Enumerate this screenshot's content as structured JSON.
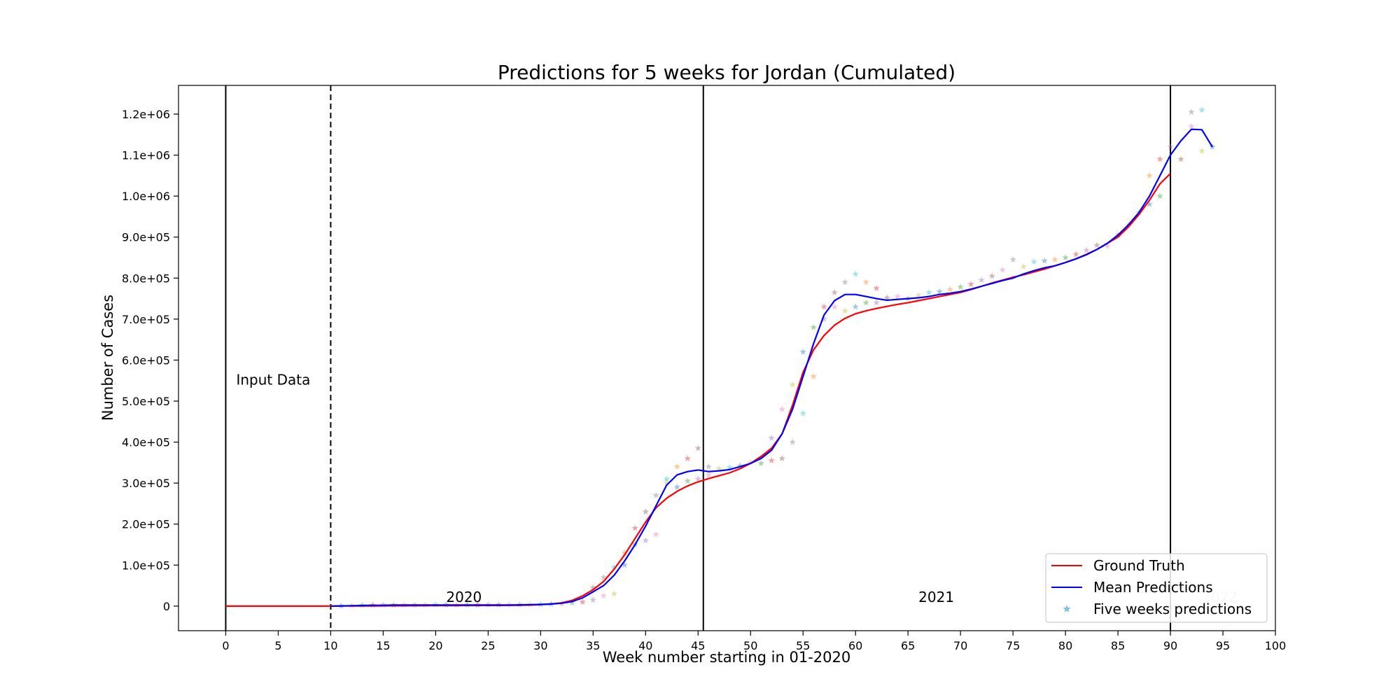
{
  "chart_data": {
    "type": "line",
    "title": "Predictions for 5 weeks for Jordan (Cumulated)",
    "xlabel": "Week number starting in 01-2020",
    "ylabel": "Number of Cases",
    "xlim": [
      -4.5,
      100
    ],
    "ylim": [
      -60000,
      1270000
    ],
    "x_ticks": [
      0,
      5,
      10,
      15,
      20,
      25,
      30,
      35,
      40,
      45,
      50,
      55,
      60,
      65,
      70,
      75,
      80,
      85,
      90,
      95,
      100
    ],
    "y_ticks": [
      0,
      100000,
      200000,
      300000,
      400000,
      500000,
      600000,
      700000,
      800000,
      900000,
      1000000,
      1100000,
      1200000
    ],
    "y_tick_labels": [
      "0",
      "1.0e+05",
      "2.0e+05",
      "3.0e+05",
      "4.0e+05",
      "5.0e+05",
      "6.0e+05",
      "7.0e+05",
      "8.0e+05",
      "9.0e+05",
      "1.0e+06",
      "1.1e+06",
      "1.2e+06"
    ],
    "grid": false,
    "legend": {
      "position": "bottom-right",
      "entries": [
        "Ground Truth",
        "Mean Predictions",
        "Five weeks predictions"
      ]
    },
    "vertical_lines": [
      {
        "x": 0,
        "style": "solid"
      },
      {
        "x": 10,
        "style": "dashed"
      },
      {
        "x": 45.5,
        "style": "solid"
      },
      {
        "x": 90,
        "style": "solid"
      }
    ],
    "annotations": [
      {
        "text": "Input Data",
        "x": 1,
        "y": 540000,
        "faint": false
      },
      {
        "text": "2020",
        "x": 21,
        "y": 10000,
        "faint": false
      },
      {
        "text": "2021",
        "x": 66,
        "y": 10000,
        "faint": false
      },
      {
        "text": "2022",
        "x": 93,
        "y": 10000,
        "faint": true
      }
    ],
    "series": [
      {
        "name": "Ground Truth",
        "color": "#ff0000",
        "x": [
          0,
          1,
          2,
          3,
          4,
          5,
          6,
          7,
          8,
          9,
          10,
          11,
          12,
          13,
          14,
          15,
          16,
          17,
          18,
          19,
          20,
          21,
          22,
          23,
          24,
          25,
          26,
          27,
          28,
          29,
          30,
          31,
          32,
          33,
          34,
          35,
          36,
          37,
          38,
          39,
          40,
          41,
          42,
          43,
          44,
          45,
          46,
          47,
          48,
          49,
          50,
          51,
          52,
          53,
          54,
          55,
          56,
          57,
          58,
          59,
          60,
          61,
          62,
          63,
          64,
          65,
          66,
          67,
          68,
          69,
          70,
          71,
          72,
          73,
          74,
          75,
          76,
          77,
          78,
          79,
          80,
          81,
          82,
          83,
          84,
          85,
          86,
          87,
          88,
          89,
          90
        ],
        "values": [
          0,
          0,
          0,
          0,
          0,
          0,
          0,
          0,
          0,
          0,
          100,
          200,
          300,
          400,
          500,
          600,
          700,
          800,
          900,
          1000,
          1100,
          1200,
          1300,
          1400,
          1500,
          1600,
          1700,
          1800,
          2000,
          2500,
          3500,
          5000,
          8000,
          14000,
          25000,
          40000,
          60000,
          90000,
          125000,
          165000,
          205000,
          240000,
          263000,
          280000,
          293000,
          303000,
          311000,
          318000,
          325000,
          335000,
          348000,
          365000,
          385000,
          420000,
          490000,
          570000,
          625000,
          660000,
          685000,
          702000,
          713000,
          720000,
          726000,
          731000,
          736000,
          740000,
          745000,
          750000,
          755000,
          760000,
          765000,
          772000,
          780000,
          788000,
          795000,
          802000,
          808000,
          815000,
          822000,
          830000,
          838000,
          847000,
          858000,
          870000,
          885000,
          900000,
          925000,
          955000,
          990000,
          1030000,
          1055000
        ]
      },
      {
        "name": "Mean Predictions",
        "color": "#0000ff",
        "x": [
          10,
          11,
          12,
          13,
          14,
          15,
          16,
          17,
          18,
          19,
          20,
          21,
          22,
          23,
          24,
          25,
          26,
          27,
          28,
          29,
          30,
          31,
          32,
          33,
          34,
          35,
          36,
          37,
          38,
          39,
          40,
          41,
          42,
          43,
          44,
          45,
          46,
          47,
          48,
          49,
          50,
          51,
          52,
          53,
          54,
          55,
          56,
          57,
          58,
          59,
          60,
          61,
          62,
          63,
          64,
          65,
          66,
          67,
          68,
          69,
          70,
          71,
          72,
          73,
          74,
          75,
          76,
          77,
          78,
          79,
          80,
          81,
          82,
          83,
          84,
          85,
          86,
          87,
          88,
          89,
          90,
          91,
          92,
          93,
          94
        ],
        "values": [
          0,
          500,
          1000,
          1500,
          2000,
          2000,
          2500,
          2500,
          2500,
          2500,
          2500,
          2500,
          2500,
          2500,
          2500,
          2500,
          2500,
          2500,
          3000,
          3500,
          4000,
          5000,
          7000,
          11000,
          20000,
          35000,
          50000,
          75000,
          110000,
          150000,
          195000,
          245000,
          295000,
          320000,
          328000,
          332000,
          328000,
          330000,
          333000,
          340000,
          348000,
          360000,
          380000,
          420000,
          480000,
          560000,
          640000,
          710000,
          745000,
          760000,
          760000,
          755000,
          750000,
          746000,
          748000,
          750000,
          752000,
          755000,
          760000,
          763000,
          767000,
          773000,
          780000,
          787000,
          794000,
          800000,
          810000,
          818000,
          825000,
          830000,
          838000,
          847000,
          857000,
          870000,
          885000,
          905000,
          930000,
          960000,
          1000000,
          1050000,
          1100000,
          1135000,
          1163000,
          1162000,
          1120000
        ]
      },
      {
        "name": "Five weeks predictions",
        "color": "#7fbfdf",
        "marker": "star",
        "x": [
          11,
          12,
          13,
          14,
          15,
          16,
          17,
          18,
          19,
          20,
          21,
          22,
          23,
          24,
          25,
          26,
          27,
          28,
          29,
          30,
          31,
          32,
          33,
          34,
          35,
          35,
          36,
          36,
          37,
          37,
          38,
          38,
          39,
          39,
          40,
          40,
          41,
          41,
          42,
          42,
          43,
          43,
          44,
          44,
          45,
          45,
          46,
          46,
          47,
          48,
          49,
          50,
          51,
          52,
          52,
          53,
          53,
          54,
          54,
          55,
          55,
          56,
          56,
          57,
          57,
          58,
          58,
          59,
          59,
          60,
          60,
          61,
          61,
          62,
          62,
          63,
          64,
          65,
          66,
          67,
          68,
          69,
          70,
          71,
          72,
          73,
          74,
          75,
          76,
          77,
          78,
          79,
          80,
          81,
          82,
          83,
          84,
          85,
          86,
          87,
          88,
          88,
          89,
          89,
          90,
          91,
          92,
          92,
          93,
          93,
          94
        ],
        "values": [
          500,
          1000,
          2000,
          2500,
          3000,
          2500,
          3000,
          2500,
          2500,
          3000,
          3000,
          2500,
          3000,
          3000,
          3000,
          3000,
          3000,
          3500,
          4000,
          4000,
          5000,
          6000,
          8000,
          10000,
          15000,
          45000,
          25000,
          70000,
          30000,
          95000,
          100000,
          130000,
          150000,
          190000,
          160000,
          230000,
          175000,
          270000,
          300000,
          310000,
          290000,
          340000,
          305000,
          360000,
          310000,
          385000,
          320000,
          340000,
          335000,
          338000,
          342000,
          350000,
          348000,
          355000,
          410000,
          360000,
          480000,
          400000,
          540000,
          470000,
          620000,
          560000,
          680000,
          730000,
          700000,
          765000,
          730000,
          790000,
          720000,
          810000,
          730000,
          790000,
          740000,
          775000,
          740000,
          752000,
          755000,
          750000,
          758000,
          765000,
          767000,
          772000,
          778000,
          785000,
          795000,
          805000,
          820000,
          845000,
          828000,
          840000,
          842000,
          845000,
          850000,
          858000,
          868000,
          880000,
          878000,
          905000,
          930000,
          960000,
          980000,
          1050000,
          1000000,
          1090000,
          1120000,
          1090000,
          1170000,
          1205000,
          1110000,
          1210000,
          1120000
        ]
      }
    ]
  }
}
